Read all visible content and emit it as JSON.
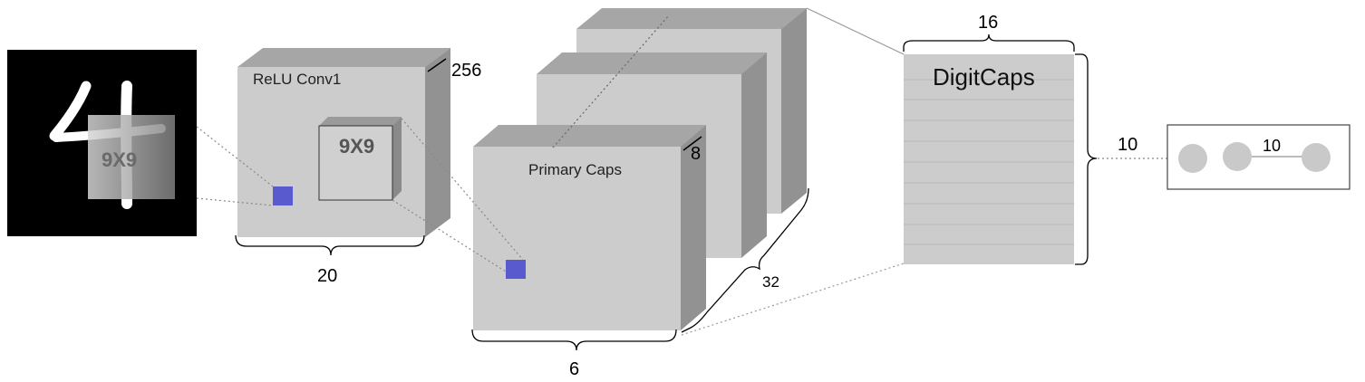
{
  "input": {
    "digit": "4",
    "kernel_label": "9X9"
  },
  "conv1": {
    "title": "ReLU Conv1",
    "kernel_label": "9X9",
    "depth": "256",
    "width": "20"
  },
  "primary_caps": {
    "title": "Primary Caps",
    "depth": "8",
    "width": "6",
    "count": "32"
  },
  "digit_caps": {
    "title": "DigitCaps",
    "width": "16",
    "height": "10"
  },
  "output": {
    "count": "10"
  },
  "colors": {
    "face": "#cccccc",
    "top": "#a6a6a6",
    "side": "#929292",
    "patch": "#5a5acf",
    "black": "#000000"
  }
}
